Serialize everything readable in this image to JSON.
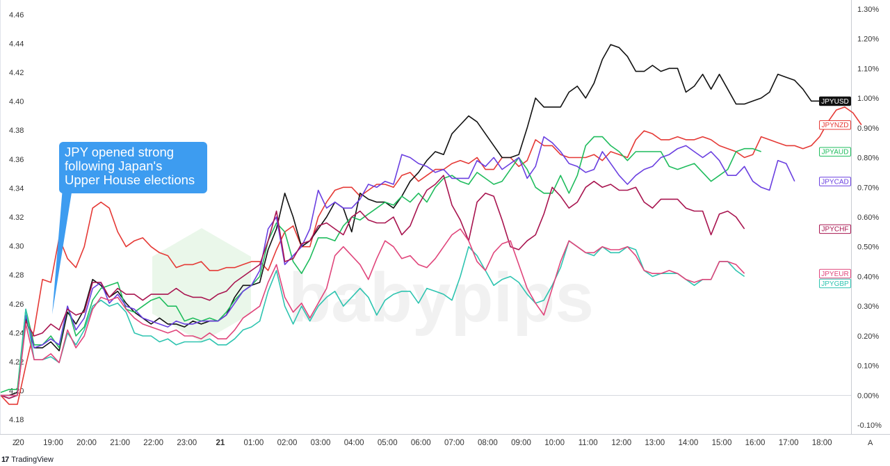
{
  "annotation": {
    "lines": [
      "JPY opened strong",
      "following Japan's",
      "Upper House elections"
    ]
  },
  "branding": {
    "name": "TradingView",
    "logo_icon": "tradingview-logo-icon"
  },
  "watermark": {
    "text": "babypips"
  },
  "axis_corner": {
    "left": "Z",
    "right": "A"
  },
  "chart_data": {
    "type": "line",
    "left_axis": {
      "ticks": [
        "4.46",
        "4.44",
        "4.42",
        "4.40",
        "4.38",
        "4.36",
        "4.34",
        "4.32",
        "4.30",
        "4.28",
        "4.26",
        "4.24",
        "4.22",
        "4.20",
        "4.18"
      ],
      "ylim": [
        4.17,
        4.47
      ]
    },
    "right_axis": {
      "ticks": [
        "1.30%",
        "1.20%",
        "1.10%",
        "1.00%",
        "0.90%",
        "0.80%",
        "0.70%",
        "0.60%",
        "0.50%",
        "0.40%",
        "0.30%",
        "0.20%",
        "0.10%",
        "0.00%",
        "-0.10%"
      ],
      "ylim": [
        -0.13,
        1.33
      ]
    },
    "x_labels": [
      "20",
      "19:00",
      "20:00",
      "21:00",
      "22:00",
      "23:00",
      "21",
      "01:00",
      "02:00",
      "03:00",
      "04:00",
      "05:00",
      "06:00",
      "07:00",
      "08:00",
      "09:00",
      "10:00",
      "11:00",
      "12:00",
      "13:00",
      "14:00",
      "15:00",
      "16:00",
      "17:00",
      "18:00"
    ],
    "x_labels_bold": [
      "21"
    ],
    "x_range": [
      -0.57,
      24.87
    ],
    "grid": "horizontal baseline only",
    "series": [
      {
        "name": "JPYNZD",
        "color": "#e53935",
        "x_start": -0.57,
        "x_step": 0.25,
        "values": [
          0.0,
          -0.03,
          -0.03,
          0.1,
          0.22,
          0.39,
          0.38,
          0.53,
          0.46,
          0.43,
          0.5,
          0.63,
          0.65,
          0.63,
          0.55,
          0.5,
          0.52,
          0.53,
          0.5,
          0.48,
          0.47,
          0.43,
          0.44,
          0.44,
          0.45,
          0.42,
          0.42,
          0.43,
          0.43,
          0.44,
          0.45,
          0.45,
          0.42,
          0.49,
          0.55,
          0.57,
          0.5,
          0.5,
          0.6,
          0.65,
          0.69,
          0.7,
          0.7,
          0.67,
          0.69,
          0.71,
          0.71,
          0.7,
          0.74,
          0.75,
          0.72,
          0.74,
          0.76,
          0.76,
          0.78,
          0.79,
          0.78,
          0.8,
          0.76,
          0.76,
          0.8,
          0.8,
          0.77,
          0.79,
          0.86,
          0.84,
          0.84,
          0.81,
          0.8,
          0.8,
          0.8,
          0.81,
          0.79,
          0.82,
          0.81,
          0.8,
          0.86,
          0.89,
          0.88,
          0.86,
          0.86,
          0.87,
          0.86,
          0.86,
          0.87,
          0.86,
          0.84,
          0.83,
          0.82,
          0.8,
          0.81,
          0.87,
          0.86,
          0.85,
          0.84,
          0.84,
          0.83,
          0.84,
          0.87,
          0.92,
          0.96,
          0.97,
          0.95,
          0.91
        ]
      },
      {
        "name": "JPYUSD",
        "color": "#111111",
        "x_start": -0.57,
        "x_step": 0.25,
        "values": [
          0.0,
          0.0,
          0.01,
          0.26,
          0.16,
          0.16,
          0.18,
          0.15,
          0.28,
          0.24,
          0.29,
          0.39,
          0.37,
          0.33,
          0.35,
          0.31,
          0.28,
          0.26,
          0.24,
          0.26,
          0.24,
          0.24,
          0.23,
          0.25,
          0.24,
          0.25,
          0.25,
          0.27,
          0.33,
          0.37,
          0.37,
          0.38,
          0.49,
          0.56,
          0.68,
          0.6,
          0.5,
          0.52,
          0.56,
          0.6,
          0.65,
          0.63,
          0.55,
          0.68,
          0.66,
          0.65,
          0.65,
          0.63,
          0.67,
          0.72,
          0.75,
          0.79,
          0.82,
          0.81,
          0.88,
          0.91,
          0.94,
          0.92,
          0.88,
          0.84,
          0.8,
          0.8,
          0.81,
          0.9,
          1.0,
          0.97,
          0.97,
          0.97,
          1.02,
          1.04,
          1.0,
          1.05,
          1.13,
          1.18,
          1.17,
          1.14,
          1.09,
          1.09,
          1.11,
          1.09,
          1.1,
          1.1,
          1.02,
          1.04,
          1.08,
          1.03,
          1.08,
          1.03,
          0.98,
          0.98,
          0.99,
          1.0,
          1.02,
          1.08,
          1.07,
          1.06,
          1.03,
          0.99,
          0.99
        ]
      },
      {
        "name": "JPYAUD",
        "color": "#1fbc5d",
        "x_start": -0.57,
        "x_step": 0.25,
        "values": [
          0.01,
          0.02,
          0.02,
          0.29,
          0.17,
          0.17,
          0.2,
          0.16,
          0.3,
          0.2,
          0.23,
          0.32,
          0.36,
          0.37,
          0.38,
          0.29,
          0.28,
          0.3,
          0.32,
          0.33,
          0.3,
          0.3,
          0.25,
          0.26,
          0.25,
          0.26,
          0.25,
          0.28,
          0.32,
          0.35,
          0.37,
          0.4,
          0.52,
          0.58,
          0.55,
          0.45,
          0.41,
          0.46,
          0.53,
          0.53,
          0.52,
          0.57,
          0.6,
          0.59,
          0.61,
          0.63,
          0.65,
          0.64,
          0.67,
          0.65,
          0.68,
          0.65,
          0.7,
          0.73,
          0.74,
          0.72,
          0.71,
          0.75,
          0.73,
          0.71,
          0.72,
          0.76,
          0.8,
          0.76,
          0.7,
          0.68,
          0.68,
          0.74,
          0.68,
          0.74,
          0.84,
          0.87,
          0.87,
          0.84,
          0.82,
          0.79,
          0.82,
          0.82,
          0.82,
          0.82,
          0.77,
          0.76,
          0.77,
          0.78,
          0.75,
          0.72,
          0.74,
          0.76,
          0.82,
          0.83,
          0.83,
          0.82
        ]
      },
      {
        "name": "JPYCAD",
        "color": "#6a3fe0",
        "x_start": -0.57,
        "x_step": 0.25,
        "values": [
          0.0,
          -0.01,
          0.0,
          0.27,
          0.16,
          0.17,
          0.19,
          0.17,
          0.3,
          0.22,
          0.26,
          0.36,
          0.38,
          0.31,
          0.34,
          0.3,
          0.29,
          0.26,
          0.25,
          0.24,
          0.23,
          0.25,
          0.24,
          0.24,
          0.25,
          0.25,
          0.25,
          0.27,
          0.31,
          0.35,
          0.37,
          0.42,
          0.56,
          0.6,
          0.44,
          0.47,
          0.5,
          0.56,
          0.69,
          0.63,
          0.65,
          0.63,
          0.63,
          0.66,
          0.71,
          0.7,
          0.72,
          0.71,
          0.81,
          0.8,
          0.78,
          0.77,
          0.75,
          0.76,
          0.73,
          0.73,
          0.73,
          0.79,
          0.77,
          0.8,
          0.76,
          0.78,
          0.8,
          0.73,
          0.77,
          0.87,
          0.85,
          0.82,
          0.78,
          0.77,
          0.75,
          0.76,
          0.82,
          0.78,
          0.74,
          0.71,
          0.74,
          0.76,
          0.77,
          0.8,
          0.81,
          0.83,
          0.84,
          0.82,
          0.8,
          0.82,
          0.79,
          0.74,
          0.74,
          0.77,
          0.72,
          0.7,
          0.69,
          0.79,
          0.78,
          0.72
        ]
      },
      {
        "name": "JPYCHF",
        "color": "#a8144f",
        "x_start": -0.57,
        "x_step": 0.25,
        "values": [
          0.0,
          -0.01,
          0.0,
          0.25,
          0.2,
          0.21,
          0.24,
          0.22,
          0.29,
          0.27,
          0.28,
          0.38,
          0.38,
          0.33,
          0.36,
          0.34,
          0.34,
          0.32,
          0.34,
          0.34,
          0.34,
          0.36,
          0.34,
          0.33,
          0.33,
          0.32,
          0.34,
          0.35,
          0.38,
          0.4,
          0.42,
          0.44,
          0.52,
          0.62,
          0.45,
          0.46,
          0.51,
          0.52,
          0.57,
          0.58,
          0.56,
          0.54,
          0.6,
          0.62,
          0.59,
          0.58,
          0.58,
          0.6,
          0.54,
          0.57,
          0.64,
          0.69,
          0.71,
          0.74,
          0.64,
          0.59,
          0.52,
          0.65,
          0.68,
          0.67,
          0.59,
          0.5,
          0.49,
          0.52,
          0.54,
          0.61,
          0.7,
          0.67,
          0.63,
          0.65,
          0.7,
          0.72,
          0.7,
          0.71,
          0.69,
          0.69,
          0.7,
          0.65,
          0.63,
          0.66,
          0.66,
          0.66,
          0.63,
          0.62,
          0.62,
          0.54,
          0.61,
          0.62,
          0.6,
          0.56
        ]
      },
      {
        "name": "JPYGBP",
        "color": "#2ec4b0",
        "x_start": -0.57,
        "x_step": 0.25,
        "values": [
          0.0,
          0.0,
          0.0,
          0.29,
          0.12,
          0.12,
          0.13,
          0.11,
          0.21,
          0.17,
          0.22,
          0.3,
          0.32,
          0.3,
          0.31,
          0.28,
          0.21,
          0.2,
          0.2,
          0.18,
          0.19,
          0.17,
          0.18,
          0.18,
          0.18,
          0.19,
          0.17,
          0.17,
          0.19,
          0.22,
          0.23,
          0.25,
          0.35,
          0.42,
          0.3,
          0.24,
          0.3,
          0.25,
          0.3,
          0.33,
          0.35,
          0.3,
          0.33,
          0.36,
          0.33,
          0.27,
          0.32,
          0.34,
          0.35,
          0.35,
          0.31,
          0.36,
          0.35,
          0.34,
          0.32,
          0.4,
          0.5,
          0.47,
          0.42,
          0.37,
          0.39,
          0.4,
          0.38,
          0.34,
          0.31,
          0.32,
          0.37,
          0.43,
          0.52,
          0.5,
          0.48,
          0.47,
          0.5,
          0.48,
          0.48,
          0.5,
          0.49,
          0.42,
          0.4,
          0.41,
          0.41,
          0.41,
          0.39,
          0.37,
          0.39,
          0.39,
          0.45,
          0.45,
          0.42,
          0.4
        ]
      },
      {
        "name": "JPYEUR",
        "color": "#e0457b",
        "x_start": -0.57,
        "x_step": 0.25,
        "values": [
          0.0,
          0.0,
          0.0,
          0.24,
          0.12,
          0.12,
          0.14,
          0.11,
          0.22,
          0.16,
          0.2,
          0.29,
          0.33,
          0.32,
          0.33,
          0.29,
          0.26,
          0.24,
          0.23,
          0.22,
          0.21,
          0.22,
          0.2,
          0.2,
          0.19,
          0.21,
          0.19,
          0.19,
          0.22,
          0.26,
          0.28,
          0.3,
          0.38,
          0.44,
          0.33,
          0.28,
          0.31,
          0.26,
          0.31,
          0.36,
          0.47,
          0.5,
          0.47,
          0.44,
          0.39,
          0.46,
          0.52,
          0.5,
          0.46,
          0.47,
          0.44,
          0.43,
          0.46,
          0.5,
          0.54,
          0.56,
          0.52,
          0.45,
          0.42,
          0.48,
          0.51,
          0.52,
          0.44,
          0.36,
          0.31,
          0.27,
          0.36,
          0.45,
          0.52,
          0.5,
          0.48,
          0.48,
          0.5,
          0.49,
          0.49,
          0.5,
          0.47,
          0.42,
          0.41,
          0.41,
          0.42,
          0.41,
          0.39,
          0.38,
          0.39,
          0.39,
          0.45,
          0.45,
          0.44,
          0.41
        ]
      }
    ]
  }
}
